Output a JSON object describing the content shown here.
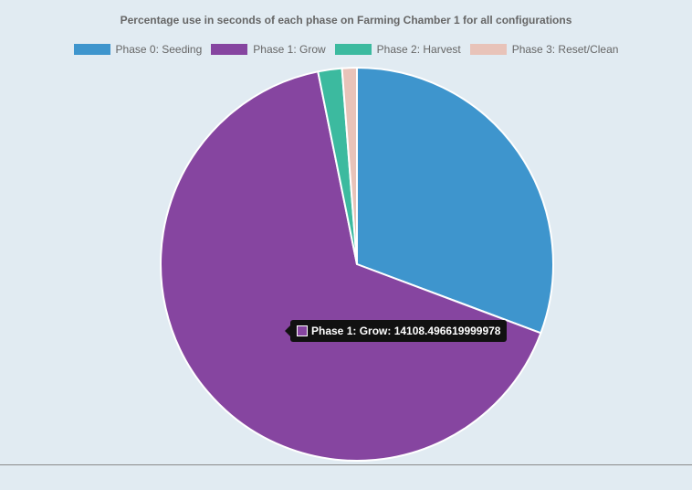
{
  "chart_data": {
    "type": "pie",
    "title": "Percentage use in seconds of each phase on Farming Chamber 1 for all configurations",
    "categories": [
      "Phase 0: Seeding",
      "Phase 1: Grow",
      "Phase 2: Harvest",
      "Phase 3: Reset/Clean"
    ],
    "values": [
      6550,
      14108.496619999978,
      420,
      260
    ],
    "colors": [
      "#3e95cd",
      "#8645a0",
      "#3cba9f",
      "#e8c3b9"
    ],
    "legend": "top"
  },
  "tooltip": {
    "text": "Phase 1: Grow: 14108.496619999978",
    "color": "#8645a0"
  }
}
